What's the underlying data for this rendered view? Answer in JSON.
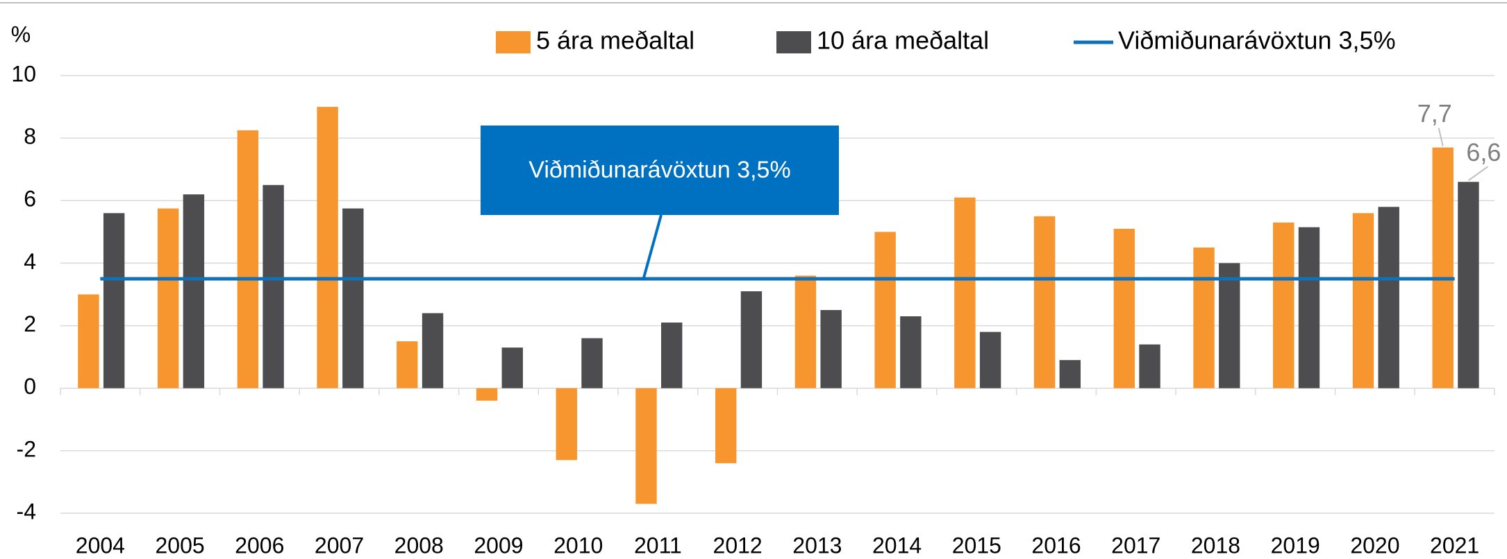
{
  "chart_data": {
    "type": "bar",
    "ylabel": "%",
    "annotation": "Viðmiðunarávöxtun 3,5%",
    "categories": [
      "2004",
      "2005",
      "2006",
      "2007",
      "2008",
      "2009",
      "2010",
      "2011",
      "2012",
      "2013",
      "2014",
      "2015",
      "2016",
      "2017",
      "2018",
      "2019",
      "2020",
      "2021"
    ],
    "series": [
      {
        "name": "5 ára meðaltal",
        "color": "#f7962f",
        "type": "bar",
        "values": [
          3.0,
          5.75,
          8.25,
          9.0,
          1.5,
          -0.4,
          -2.3,
          -3.7,
          -2.4,
          3.6,
          5.0,
          6.1,
          5.5,
          5.1,
          4.5,
          5.3,
          5.6,
          7.7
        ],
        "value_labels": [
          null,
          null,
          null,
          null,
          null,
          null,
          null,
          null,
          null,
          null,
          null,
          null,
          null,
          null,
          null,
          null,
          null,
          "7,7"
        ]
      },
      {
        "name": "10 ára meðaltal",
        "color": "#4d4d4f",
        "type": "bar",
        "values": [
          5.6,
          6.2,
          6.5,
          5.75,
          2.4,
          1.3,
          1.6,
          2.1,
          3.1,
          2.5,
          2.3,
          1.8,
          0.9,
          1.4,
          4.0,
          5.15,
          5.8,
          6.6
        ],
        "value_labels": [
          null,
          null,
          null,
          null,
          null,
          null,
          null,
          null,
          null,
          null,
          null,
          null,
          null,
          null,
          null,
          null,
          null,
          "6,6"
        ]
      },
      {
        "name": "Viðmiðunarávöxtun 3,5%",
        "color": "#1070b8",
        "type": "line",
        "values": [
          3.5,
          3.5,
          3.5,
          3.5,
          3.5,
          3.5,
          3.5,
          3.5,
          3.5,
          3.5,
          3.5,
          3.5,
          3.5,
          3.5,
          3.5,
          3.5,
          3.5,
          3.5
        ]
      }
    ],
    "ylim": [
      -4,
      10
    ],
    "yticks": [
      -4,
      -2,
      0,
      2,
      4,
      6,
      8,
      10
    ],
    "grid": true,
    "legend": "top"
  }
}
